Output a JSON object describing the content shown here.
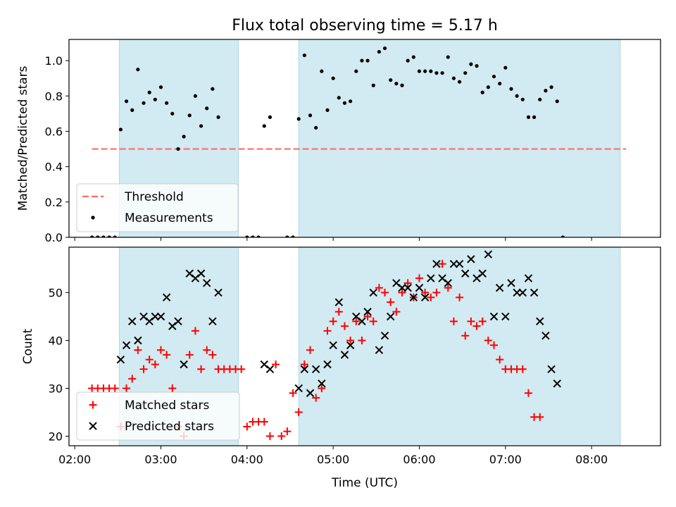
{
  "figure": {
    "title": "Flux total observing time = 5.17 h",
    "xlabel": "Time (UTC)"
  },
  "colors": {
    "shade": "#add8e6",
    "threshold": "#ff6b6b",
    "matched": "#ff0000",
    "predicted": "#000000",
    "measurement": "#000000"
  },
  "chart_data": [
    {
      "type": "scatter",
      "ylabel": "Matched/Predicted stars",
      "xlim": [
        "01:56",
        "08:48"
      ],
      "ylim": [
        0,
        1.12
      ],
      "yticks": [
        0.0,
        0.2,
        0.4,
        0.6,
        0.8,
        1.0
      ],
      "ytick_labels": [
        "0.0",
        "0.2",
        "0.4",
        "0.6",
        "0.8",
        "1.0"
      ],
      "shaded_intervals": [
        [
          "02:31",
          "03:54"
        ],
        [
          "04:36",
          "08:20"
        ]
      ],
      "legend": {
        "placement": "lower-left",
        "entries": [
          "Threshold",
          "Measurements"
        ]
      },
      "threshold": {
        "name": "Threshold",
        "y": 0.5,
        "x_range": [
          "02:12",
          "08:24"
        ]
      },
      "series": [
        {
          "name": "Measurements",
          "points": [
            [
              "02:12",
              0.0
            ],
            [
              "02:16",
              0.0
            ],
            [
              "02:20",
              0.0
            ],
            [
              "02:24",
              0.0
            ],
            [
              "02:28",
              0.0
            ],
            [
              "02:32",
              0.61
            ],
            [
              "02:36",
              0.77
            ],
            [
              "02:40",
              0.72
            ],
            [
              "02:44",
              0.95
            ],
            [
              "02:48",
              0.76
            ],
            [
              "02:52",
              0.82
            ],
            [
              "02:56",
              0.78
            ],
            [
              "03:00",
              0.85
            ],
            [
              "03:04",
              0.76
            ],
            [
              "03:08",
              0.7
            ],
            [
              "03:12",
              0.5
            ],
            [
              "03:16",
              0.57
            ],
            [
              "03:20",
              0.69
            ],
            [
              "03:24",
              0.8
            ],
            [
              "03:28",
              0.63
            ],
            [
              "03:32",
              0.73
            ],
            [
              "03:36",
              0.84
            ],
            [
              "03:40",
              0.68
            ],
            [
              "04:00",
              0.0
            ],
            [
              "04:04",
              0.0
            ],
            [
              "04:08",
              0.0
            ],
            [
              "04:12",
              0.63
            ],
            [
              "04:16",
              0.68
            ],
            [
              "04:28",
              0.0
            ],
            [
              "04:32",
              0.0
            ],
            [
              "04:36",
              0.67
            ],
            [
              "04:40",
              1.03
            ],
            [
              "04:44",
              0.69
            ],
            [
              "04:48",
              0.62
            ],
            [
              "04:52",
              0.94
            ],
            [
              "04:56",
              0.72
            ],
            [
              "05:00",
              0.9
            ],
            [
              "05:04",
              0.79
            ],
            [
              "05:08",
              0.76
            ],
            [
              "05:12",
              0.77
            ],
            [
              "05:16",
              0.94
            ],
            [
              "05:20",
              1.0
            ],
            [
              "05:24",
              1.0
            ],
            [
              "05:28",
              0.86
            ],
            [
              "05:32",
              1.05
            ],
            [
              "05:36",
              1.07
            ],
            [
              "05:40",
              0.89
            ],
            [
              "05:44",
              0.87
            ],
            [
              "05:48",
              0.86
            ],
            [
              "05:52",
              1.0
            ],
            [
              "05:56",
              1.02
            ],
            [
              "06:00",
              0.94
            ],
            [
              "06:04",
              0.94
            ],
            [
              "06:08",
              0.94
            ],
            [
              "06:12",
              0.93
            ],
            [
              "06:16",
              0.93
            ],
            [
              "06:20",
              1.02
            ],
            [
              "06:24",
              0.9
            ],
            [
              "06:28",
              0.88
            ],
            [
              "06:32",
              0.93
            ],
            [
              "06:36",
              0.98
            ],
            [
              "06:40",
              0.97
            ],
            [
              "06:44",
              0.82
            ],
            [
              "06:48",
              0.85
            ],
            [
              "06:52",
              0.91
            ],
            [
              "06:56",
              0.87
            ],
            [
              "07:00",
              0.96
            ],
            [
              "07:04",
              0.84
            ],
            [
              "07:08",
              0.8
            ],
            [
              "07:12",
              0.78
            ],
            [
              "07:16",
              0.68
            ],
            [
              "07:20",
              0.68
            ],
            [
              "07:24",
              0.78
            ],
            [
              "07:28",
              0.83
            ],
            [
              "07:32",
              0.85
            ],
            [
              "07:36",
              0.77
            ],
            [
              "07:40",
              0.0
            ]
          ]
        }
      ]
    },
    {
      "type": "scatter",
      "ylabel": "Count",
      "xlim": [
        "01:56",
        "08:48"
      ],
      "ylim": [
        18,
        59.5
      ],
      "yticks": [
        20,
        30,
        40,
        50
      ],
      "ytick_labels": [
        "20",
        "30",
        "40",
        "50"
      ],
      "xticks": [
        "02:00",
        "03:00",
        "04:00",
        "05:00",
        "06:00",
        "07:00",
        "08:00"
      ],
      "xtick_labels": [
        "02:00",
        "03:00",
        "04:00",
        "05:00",
        "06:00",
        "07:00",
        "08:00"
      ],
      "shaded_intervals": [
        [
          "02:31",
          "03:54"
        ],
        [
          "04:36",
          "08:20"
        ]
      ],
      "legend": {
        "placement": "lower-left",
        "entries": [
          "Matched stars",
          "Predicted stars"
        ]
      },
      "series": [
        {
          "name": "Matched stars",
          "marker": "plus",
          "points": [
            [
              "02:12",
              30
            ],
            [
              "02:16",
              30
            ],
            [
              "02:20",
              30
            ],
            [
              "02:24",
              30
            ],
            [
              "02:28",
              30
            ],
            [
              "02:32",
              22
            ],
            [
              "02:36",
              30
            ],
            [
              "02:40",
              32
            ],
            [
              "02:44",
              38
            ],
            [
              "02:48",
              34
            ],
            [
              "02:52",
              36
            ],
            [
              "02:56",
              35
            ],
            [
              "03:00",
              38
            ],
            [
              "03:04",
              37
            ],
            [
              "03:08",
              30
            ],
            [
              "03:12",
              22
            ],
            [
              "03:16",
              20
            ],
            [
              "03:20",
              37
            ],
            [
              "03:24",
              42
            ],
            [
              "03:28",
              34
            ],
            [
              "03:32",
              38
            ],
            [
              "03:36",
              37
            ],
            [
              "03:40",
              34
            ],
            [
              "03:44",
              34
            ],
            [
              "03:48",
              34
            ],
            [
              "03:52",
              34
            ],
            [
              "03:56",
              34
            ],
            [
              "04:00",
              22
            ],
            [
              "04:04",
              23
            ],
            [
              "04:08",
              23
            ],
            [
              "04:12",
              23
            ],
            [
              "04:16",
              20
            ],
            [
              "04:20",
              35
            ],
            [
              "04:24",
              20
            ],
            [
              "04:28",
              21
            ],
            [
              "04:32",
              29
            ],
            [
              "04:36",
              25
            ],
            [
              "04:40",
              35
            ],
            [
              "04:44",
              38
            ],
            [
              "04:48",
              28
            ],
            [
              "04:52",
              30
            ],
            [
              "04:56",
              42
            ],
            [
              "05:00",
              44
            ],
            [
              "05:04",
              46
            ],
            [
              "05:08",
              43
            ],
            [
              "05:12",
              40
            ],
            [
              "05:16",
              44
            ],
            [
              "05:20",
              40
            ],
            [
              "05:24",
              45
            ],
            [
              "05:28",
              44
            ],
            [
              "05:32",
              51
            ],
            [
              "05:36",
              50
            ],
            [
              "05:40",
              48
            ],
            [
              "05:44",
              46
            ],
            [
              "05:48",
              50
            ],
            [
              "05:52",
              52
            ],
            [
              "05:56",
              49
            ],
            [
              "06:00",
              53
            ],
            [
              "06:04",
              50
            ],
            [
              "06:08",
              49
            ],
            [
              "06:12",
              50
            ],
            [
              "06:16",
              56
            ],
            [
              "06:20",
              51
            ],
            [
              "06:24",
              44
            ],
            [
              "06:28",
              49
            ],
            [
              "06:32",
              41
            ],
            [
              "06:36",
              44
            ],
            [
              "06:40",
              43
            ],
            [
              "06:44",
              44
            ],
            [
              "06:48",
              40
            ],
            [
              "06:52",
              39
            ],
            [
              "06:56",
              36
            ],
            [
              "07:00",
              34
            ],
            [
              "07:04",
              34
            ],
            [
              "07:08",
              34
            ],
            [
              "07:12",
              34
            ],
            [
              "07:16",
              29
            ],
            [
              "07:20",
              24
            ],
            [
              "07:24",
              24
            ]
          ]
        },
        {
          "name": "Predicted stars",
          "marker": "x",
          "points": [
            [
              "02:32",
              36
            ],
            [
              "02:36",
              39
            ],
            [
              "02:40",
              44
            ],
            [
              "02:44",
              40
            ],
            [
              "02:48",
              45
            ],
            [
              "02:52",
              44
            ],
            [
              "02:56",
              45
            ],
            [
              "03:00",
              45
            ],
            [
              "03:04",
              49
            ],
            [
              "03:08",
              43
            ],
            [
              "03:12",
              44
            ],
            [
              "03:16",
              35
            ],
            [
              "03:20",
              54
            ],
            [
              "03:24",
              53
            ],
            [
              "03:28",
              54
            ],
            [
              "03:32",
              52
            ],
            [
              "03:36",
              44
            ],
            [
              "03:40",
              50
            ],
            [
              "04:12",
              35
            ],
            [
              "04:16",
              34
            ],
            [
              "04:36",
              30
            ],
            [
              "04:40",
              34
            ],
            [
              "04:44",
              29
            ],
            [
              "04:48",
              34
            ],
            [
              "04:52",
              31
            ],
            [
              "04:56",
              35
            ],
            [
              "05:00",
              39
            ],
            [
              "05:04",
              48
            ],
            [
              "05:08",
              37
            ],
            [
              "05:12",
              39
            ],
            [
              "05:16",
              45
            ],
            [
              "05:20",
              44
            ],
            [
              "05:24",
              46
            ],
            [
              "05:28",
              50
            ],
            [
              "05:32",
              38
            ],
            [
              "05:36",
              41
            ],
            [
              "05:40",
              45
            ],
            [
              "05:44",
              52
            ],
            [
              "05:48",
              51
            ],
            [
              "05:52",
              51
            ],
            [
              "05:56",
              49
            ],
            [
              "06:00",
              51
            ],
            [
              "06:04",
              49
            ],
            [
              "06:08",
              53
            ],
            [
              "06:12",
              56
            ],
            [
              "06:16",
              53
            ],
            [
              "06:20",
              52
            ],
            [
              "06:24",
              56
            ],
            [
              "06:28",
              56
            ],
            [
              "06:32",
              54
            ],
            [
              "06:36",
              57
            ],
            [
              "06:40",
              53
            ],
            [
              "06:44",
              54
            ],
            [
              "06:48",
              58
            ],
            [
              "06:52",
              45
            ],
            [
              "06:56",
              51
            ],
            [
              "07:00",
              45
            ],
            [
              "07:04",
              52
            ],
            [
              "07:08",
              50
            ],
            [
              "07:12",
              50
            ],
            [
              "07:16",
              53
            ],
            [
              "07:20",
              50
            ],
            [
              "07:24",
              44
            ],
            [
              "07:28",
              41
            ],
            [
              "07:32",
              34
            ],
            [
              "07:36",
              31
            ]
          ]
        }
      ]
    }
  ]
}
